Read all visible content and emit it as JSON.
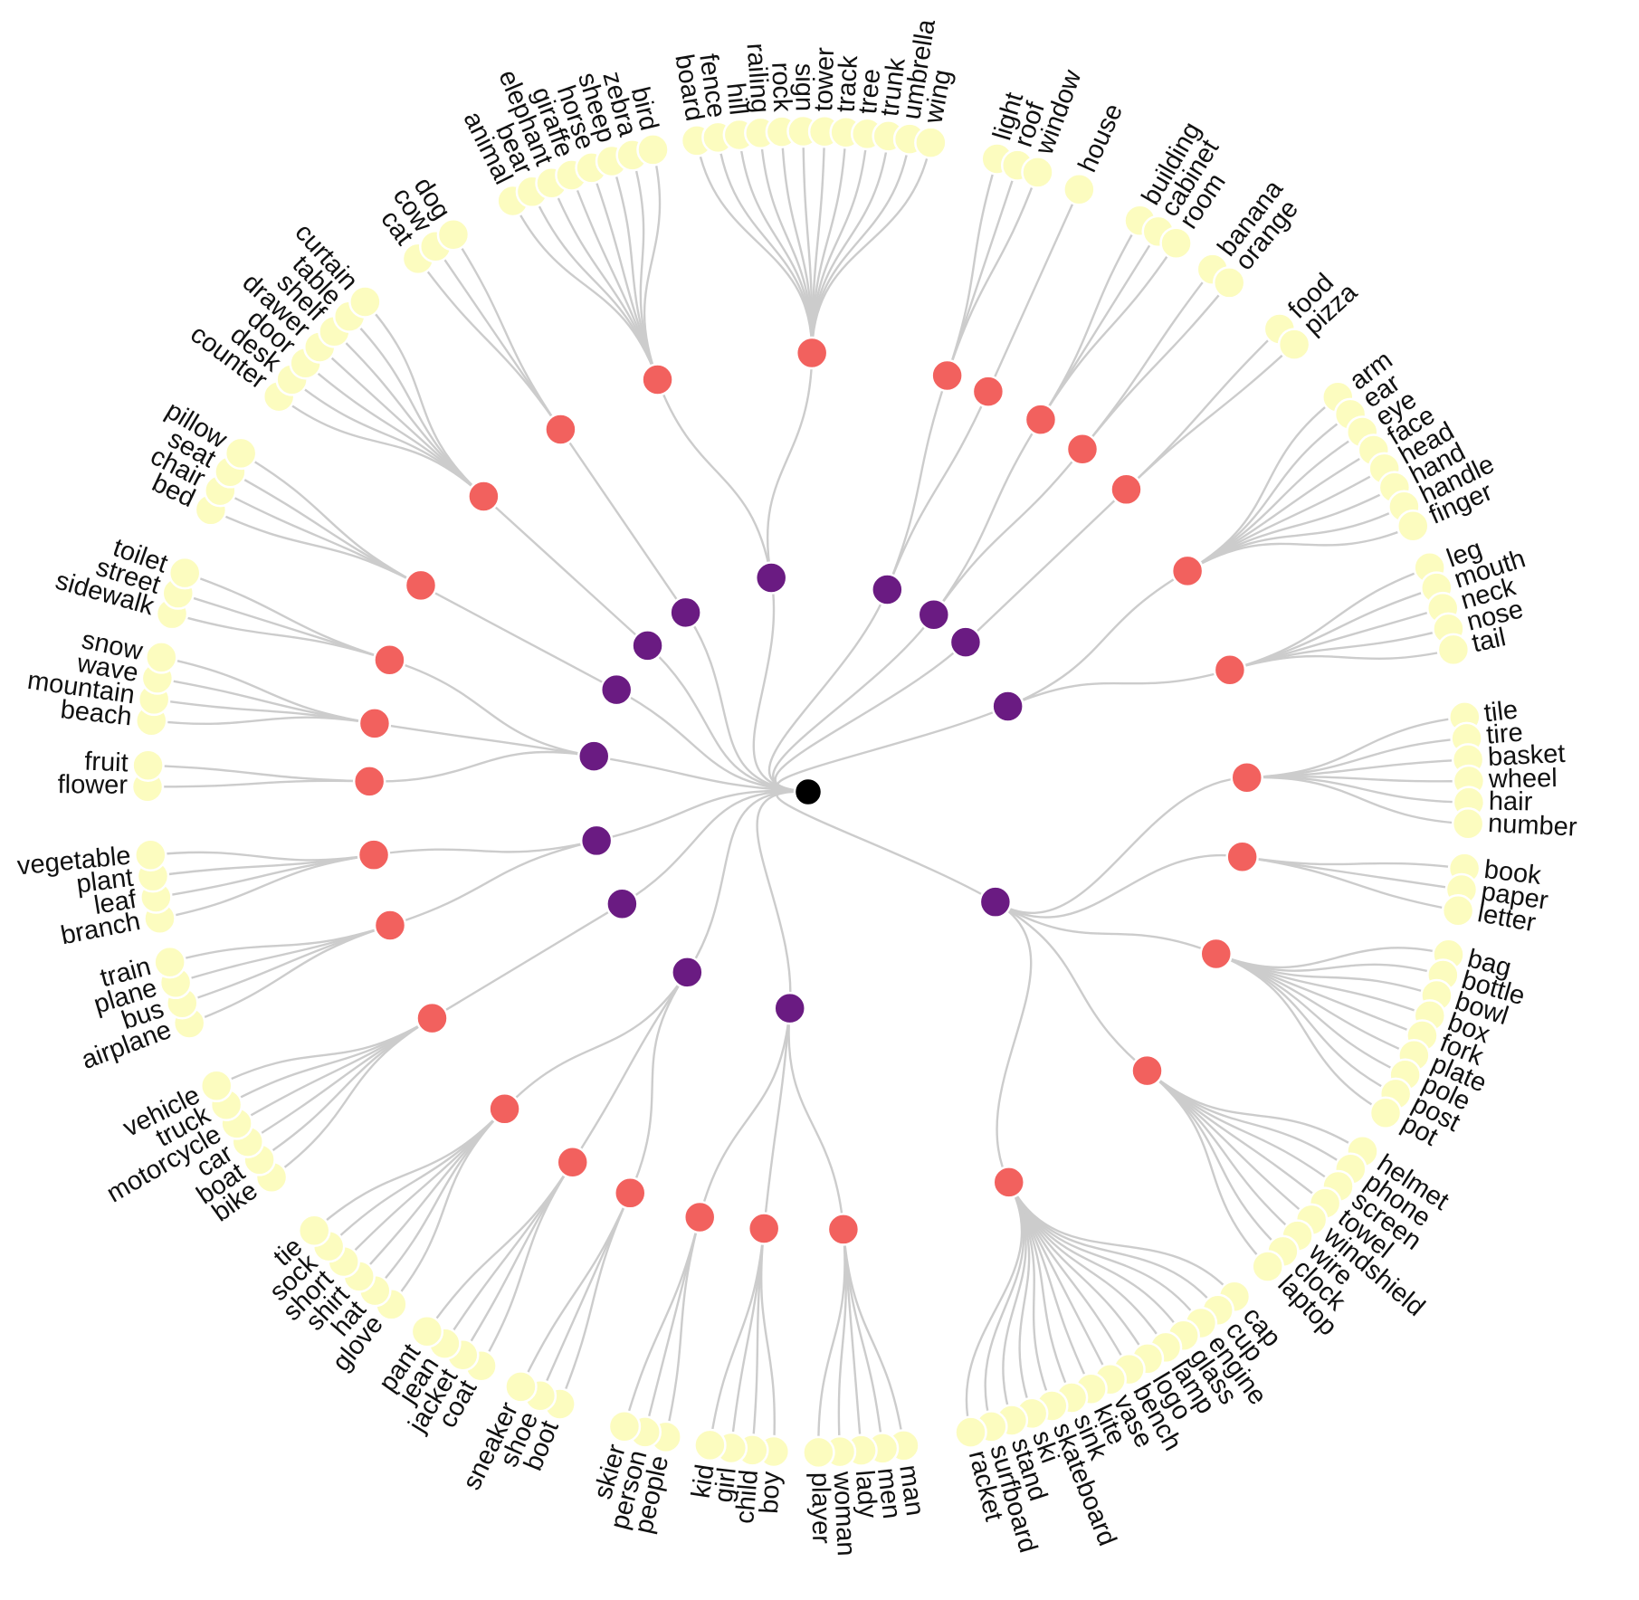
{
  "colors": {
    "root": "#000000",
    "branch": "#6a1b82",
    "cluster": "#f2615e",
    "leaf": "#fcfcbf",
    "edge": "#cccccc",
    "label": "#111111"
  },
  "tree": {
    "name": "",
    "children": [
      {
        "children": [
          {
            "children": [
              "tile",
              "tire",
              "basket",
              "wheel",
              "hair",
              "number"
            ]
          },
          {
            "children": [
              "book",
              "paper",
              "letter"
            ]
          },
          {
            "children": [
              "bag",
              "bottle",
              "bowl",
              "box",
              "fork",
              "plate",
              "pole",
              "post",
              "pot"
            ]
          },
          {
            "children": [
              "helmet",
              "phone",
              "screen",
              "towel",
              "windshield",
              "wire",
              "clock",
              "laptop"
            ]
          },
          {
            "children": [
              "cap",
              "cup",
              "engine",
              "glass",
              "lamp",
              "logo",
              "bench",
              "vase",
              "kite",
              "sink",
              "skateboard",
              "ski",
              "stand",
              "surfboard",
              "racket"
            ]
          }
        ]
      },
      {
        "children": [
          {
            "children": [
              "man",
              "men",
              "lady",
              "woman",
              "player"
            ]
          },
          {
            "children": [
              "boy",
              "child",
              "girl",
              "kid"
            ]
          },
          {
            "children": [
              "people",
              "person",
              "skier"
            ]
          }
        ]
      },
      {
        "children": [
          {
            "children": [
              "boot",
              "shoe",
              "sneaker"
            ]
          },
          {
            "children": [
              "coat",
              "jacket",
              "jean",
              "pant"
            ]
          },
          {
            "children": [
              "glove",
              "hat",
              "shirt",
              "short",
              "sock",
              "tie"
            ]
          }
        ]
      },
      {
        "children": [
          {
            "children": [
              "bike",
              "boat",
              "car",
              "motorcycle",
              "truck",
              "vehicle"
            ]
          }
        ]
      },
      {
        "children": [
          {
            "children": [
              "airplane",
              "bus",
              "plane",
              "train"
            ]
          },
          {
            "children": [
              "branch",
              "leaf",
              "plant",
              "vegetable"
            ]
          }
        ]
      },
      {
        "children": [
          {
            "children": [
              "flower",
              "fruit"
            ]
          },
          {
            "children": [
              "beach",
              "mountain",
              "wave",
              "snow"
            ]
          },
          {
            "children": [
              "sidewalk",
              "street",
              "toilet"
            ]
          }
        ]
      },
      {
        "children": [
          {
            "children": [
              "bed",
              "chair",
              "seat",
              "pillow"
            ]
          }
        ]
      },
      {
        "children": [
          {
            "children": [
              "counter",
              "desk",
              "door",
              "drawer",
              "shelf",
              "table",
              "curtain"
            ]
          }
        ]
      },
      {
        "children": [
          {
            "children": [
              "cat",
              "cow",
              "dog"
            ]
          }
        ]
      },
      {
        "children": [
          {
            "children": [
              "animal",
              "bear",
              "elephant",
              "giraffe",
              "horse",
              "sheep",
              "zebra",
              "bird"
            ]
          },
          {
            "children": [
              "board",
              "fence",
              "hill",
              "railing",
              "rock",
              "sign",
              "tower",
              "track",
              "tree",
              "trunk",
              "umbrella",
              "wing"
            ]
          }
        ]
      },
      {
        "children": [
          {
            "children": [
              "light",
              "roof",
              "window"
            ]
          },
          {
            "children": [
              "house"
            ]
          }
        ]
      },
      {
        "children": [
          {
            "children": [
              "building",
              "cabinet",
              "room"
            ]
          },
          {
            "children": [
              "banana",
              "orange"
            ]
          }
        ]
      },
      {
        "children": [
          {
            "children": [
              "food",
              "pizza"
            ]
          }
        ]
      },
      {
        "children": [
          {
            "children": [
              "arm",
              "ear",
              "eye",
              "face",
              "head",
              "hand",
              "handle",
              "finger"
            ]
          },
          {
            "children": [
              "leg",
              "mouth",
              "neck",
              "nose",
              "tail"
            ]
          }
        ]
      }
    ]
  }
}
